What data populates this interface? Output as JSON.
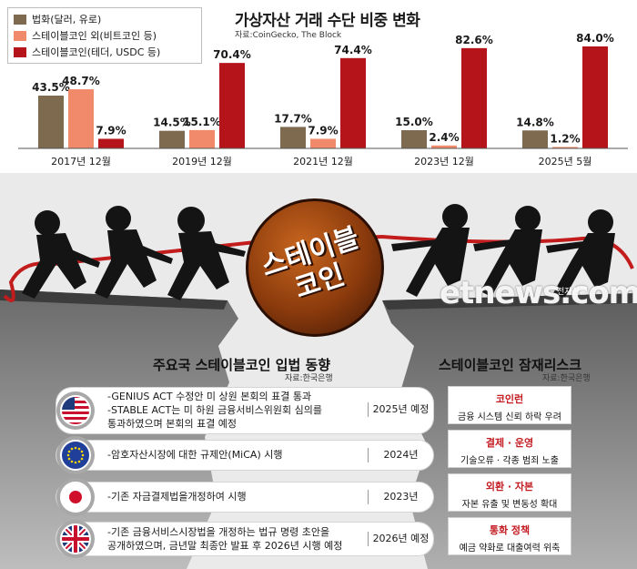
{
  "chart_data": {
    "type": "bar",
    "title": "가상자산 거래 수단 비중 변화",
    "source": "자료:CoinGecko, The Block",
    "categories": [
      "2017년 12월",
      "2019년 12월",
      "2021년 12월",
      "2023년 12월",
      "2025년 5월"
    ],
    "series": [
      {
        "name": "법화(달러, 유로)",
        "color": "#7d6a4f",
        "values": [
          43.5,
          14.5,
          17.7,
          15.0,
          14.8
        ],
        "labels": [
          "43.5%",
          "14.5%",
          "17.7%",
          "15.0%",
          "14.8%"
        ]
      },
      {
        "name": "스테이블코인 외(비트코인 등)",
        "color": "#f08a6a",
        "values": [
          48.7,
          15.1,
          7.9,
          2.4,
          1.2
        ],
        "labels": [
          "48.7%",
          "15.1%",
          "7.9%",
          "2.4%",
          "1.2%"
        ]
      },
      {
        "name": "스테이블코인(테더, USDC 등)",
        "color": "#b5141b",
        "values": [
          7.9,
          70.4,
          74.4,
          82.6,
          84.0
        ],
        "labels": [
          "7.9%",
          "70.4%",
          "74.4%",
          "82.6%",
          "84.0%"
        ]
      }
    ],
    "ylim": [
      0,
      84
    ],
    "legend": "top-left"
  },
  "illustration": {
    "coin_label": "스테이블\n코인",
    "watermark": "etnews.com",
    "watermark_sub": "전자신문"
  },
  "policy": {
    "title": "주요국 스테이블코인 입법 동향",
    "source": "자료:한국은행",
    "rows": [
      {
        "flag": "us-flag-icon",
        "text": "-GENIUS ACT 수정안 미 상원 본회의 표결 통과\n-STABLE ACT는 미 하원 금융서비스위원회 심의를\n 통과하였으며 본회의 표결 예정",
        "date": "2025년 예정"
      },
      {
        "flag": "eu-flag-icon",
        "text": "-암호자산시장에 대한 규제안(MiCA) 시행",
        "date": "2024년"
      },
      {
        "flag": "japan-flag-icon",
        "text": "-기존 자금결제법을개정하여 시행",
        "date": "2023년"
      },
      {
        "flag": "uk-flag-icon",
        "text": "-기존  금융서비스시장법을 개정하는 법규 명령 초안을\n 공개하였으며, 금년말 최종안 발표 후 2026년 시행 예정",
        "date": "2026년 예정"
      }
    ]
  },
  "risk": {
    "title": "스테이블코인 잠재리스크",
    "source": "자료:한국은행",
    "items": [
      {
        "head": "코인런",
        "desc": "금융 시스템 신뢰 하락 우려"
      },
      {
        "head": "결제 · 운영",
        "desc": "기술오류 · 각종 범죄 노출"
      },
      {
        "head": "외환 · 자본",
        "desc": "자본 유출 및 변동성 확대"
      },
      {
        "head": "통화 정책",
        "desc": "예금 약화로 대출여력 위축"
      }
    ],
    "accent": "#c41c22"
  }
}
